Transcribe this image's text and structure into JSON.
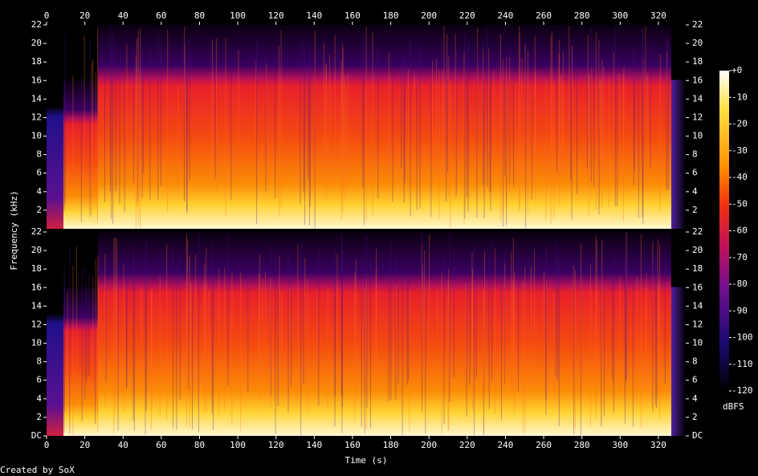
{
  "chart_data": {
    "type": "spectrogram",
    "x_label": "Time (s)",
    "y_label": "Frequency (kHz)",
    "xlim": [
      0,
      334.3
    ],
    "xticks": [
      0,
      20,
      40,
      60,
      80,
      100,
      120,
      140,
      160,
      180,
      200,
      220,
      240,
      260,
      280,
      300,
      320
    ],
    "channels": [
      {
        "ylim": [
          0,
          22
        ],
        "yticks": [
          2,
          4,
          6,
          8,
          10,
          12,
          14,
          16,
          18,
          20,
          22
        ]
      },
      {
        "ylim": [
          0,
          22
        ],
        "yticks": [
          {
            "value": 0,
            "label": "DC"
          },
          2,
          4,
          6,
          8,
          10,
          12,
          14,
          16,
          18,
          20,
          22
        ]
      }
    ],
    "colorbar": {
      "label": "dBFS",
      "lim": [
        -120,
        0
      ],
      "ticks": [
        {
          "value": 0,
          "label": "+0"
        },
        -10,
        -20,
        -30,
        -40,
        -50,
        -60,
        -70,
        -80,
        -90,
        -100,
        -110,
        -120
      ]
    }
  },
  "footer": "Created by SoX"
}
